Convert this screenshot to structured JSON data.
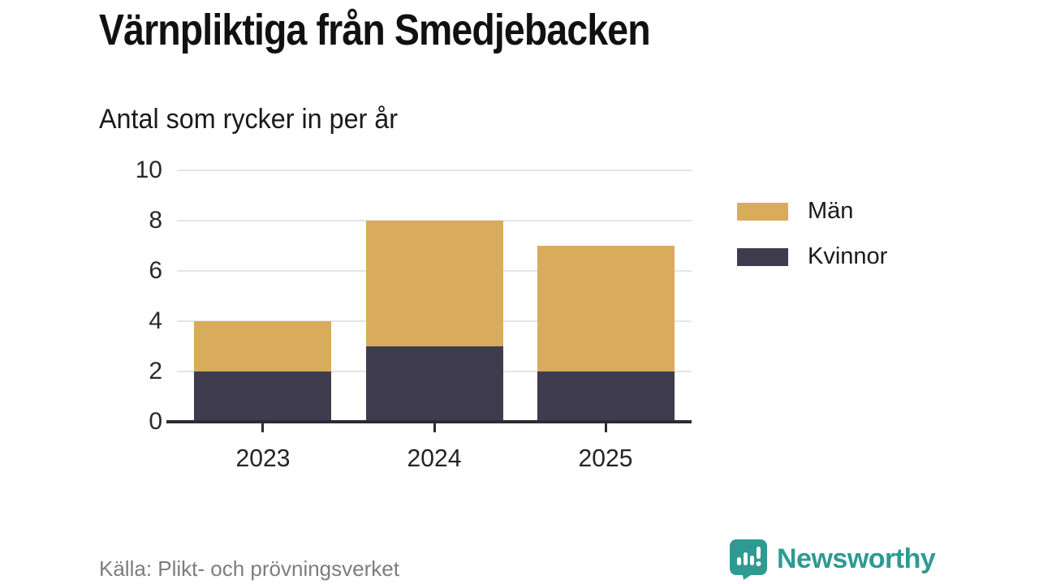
{
  "header": {
    "title": "Värnpliktiga från Smedjebacken",
    "subtitle": "Antal som rycker in per år"
  },
  "chart_data": {
    "type": "bar",
    "stacked": true,
    "title": "Värnpliktiga från Smedjebacken",
    "subtitle": "Antal som rycker in per år",
    "categories": [
      "2023",
      "2024",
      "2025"
    ],
    "series": [
      {
        "name": "Män",
        "color": "#d9ac5c",
        "values": [
          2,
          5,
          5
        ]
      },
      {
        "name": "Kvinnor",
        "color": "#3f3d4d",
        "values": [
          2,
          3,
          2
        ]
      }
    ],
    "stack_bottom_to_top": [
      "Kvinnor",
      "Män"
    ],
    "totals": [
      4,
      8,
      7
    ],
    "xlabel": "",
    "ylabel": "",
    "ylim": [
      0,
      10
    ],
    "yticks": [
      0,
      2,
      4,
      6,
      8,
      10
    ],
    "grid": true,
    "grid_color": "#e4e4e4",
    "axis_color": "#2e2b38",
    "legend_position": "right"
  },
  "legend": {
    "items": [
      {
        "label": "Män",
        "color": "#d9ac5c"
      },
      {
        "label": "Kvinnor",
        "color": "#3f3d4d"
      }
    ]
  },
  "footer": {
    "source": "Källa: Plikt- och prövningsverket",
    "brand_name": "Newsworthy",
    "brand_color": "#2f9a92",
    "brand_icon": "speech-bubble-bar-chart-icon"
  }
}
